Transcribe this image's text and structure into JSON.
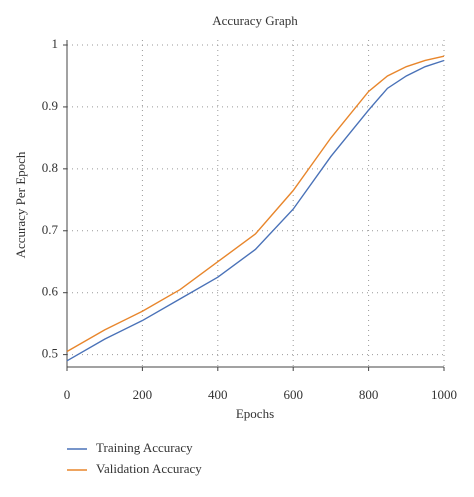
{
  "chart_data": {
    "type": "line",
    "title": "Accuracy Graph",
    "x_label": "Epochs",
    "y_label": "Accuracy Per Epoch",
    "x": [
      0,
      100,
      200,
      300,
      400,
      500,
      600,
      700,
      800,
      850,
      900,
      950,
      1000
    ],
    "series": [
      {
        "name": "Training Accuracy",
        "color": "#4a72b8",
        "values": [
          0.49,
          0.525,
          0.555,
          0.59,
          0.625,
          0.67,
          0.735,
          0.82,
          0.895,
          0.93,
          0.95,
          0.965,
          0.975
        ]
      },
      {
        "name": "Validation Accuracy",
        "color": "#e8862c",
        "values": [
          0.505,
          0.54,
          0.57,
          0.605,
          0.65,
          0.695,
          0.765,
          0.85,
          0.925,
          0.95,
          0.965,
          0.975,
          0.982
        ]
      }
    ],
    "xlim": [
      0,
      1000
    ],
    "xticks": [
      0,
      200,
      400,
      600,
      800,
      1000
    ],
    "ylim": [
      0.48,
      1.0
    ],
    "yticks": [
      0.5,
      0.6,
      0.7,
      0.8,
      0.9,
      1
    ],
    "grid": true
  }
}
